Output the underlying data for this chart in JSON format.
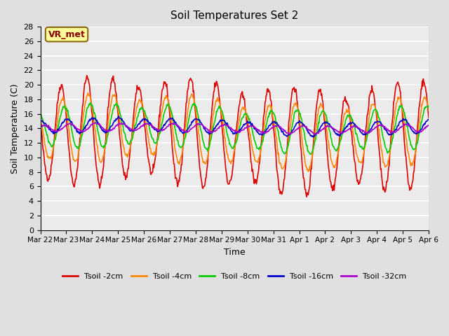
{
  "title": "Soil Temperatures Set 2",
  "xlabel": "Time",
  "ylabel": "Soil Temperature (C)",
  "annotation": "VR_met",
  "ylim": [
    0,
    28
  ],
  "yticks": [
    0,
    2,
    4,
    6,
    8,
    10,
    12,
    14,
    16,
    18,
    20,
    22,
    24,
    26,
    28
  ],
  "fig_bg_color": "#e0e0e0",
  "plot_bg_color": "#ebebeb",
  "grid_color": "#ffffff",
  "series": [
    {
      "label": "Tsoil -2cm",
      "color": "#dd0000"
    },
    {
      "label": "Tsoil -4cm",
      "color": "#ff8800"
    },
    {
      "label": "Tsoil -8cm",
      "color": "#00cc00"
    },
    {
      "label": "Tsoil -16cm",
      "color": "#0000cc"
    },
    {
      "label": "Tsoil -32cm",
      "color": "#aa00cc"
    }
  ],
  "n_days": 15,
  "xtick_labels": [
    "Mar 22",
    "Mar 23",
    "Mar 24",
    "Mar 25",
    "Mar 26",
    "Mar 27",
    "Mar 28",
    "Mar 29",
    "Mar 30",
    "Mar 31",
    "Apr 1",
    "Apr 2",
    "Apr 3",
    "Apr 4",
    "Apr 5",
    "Apr 6"
  ],
  "linewidth": 1.2
}
